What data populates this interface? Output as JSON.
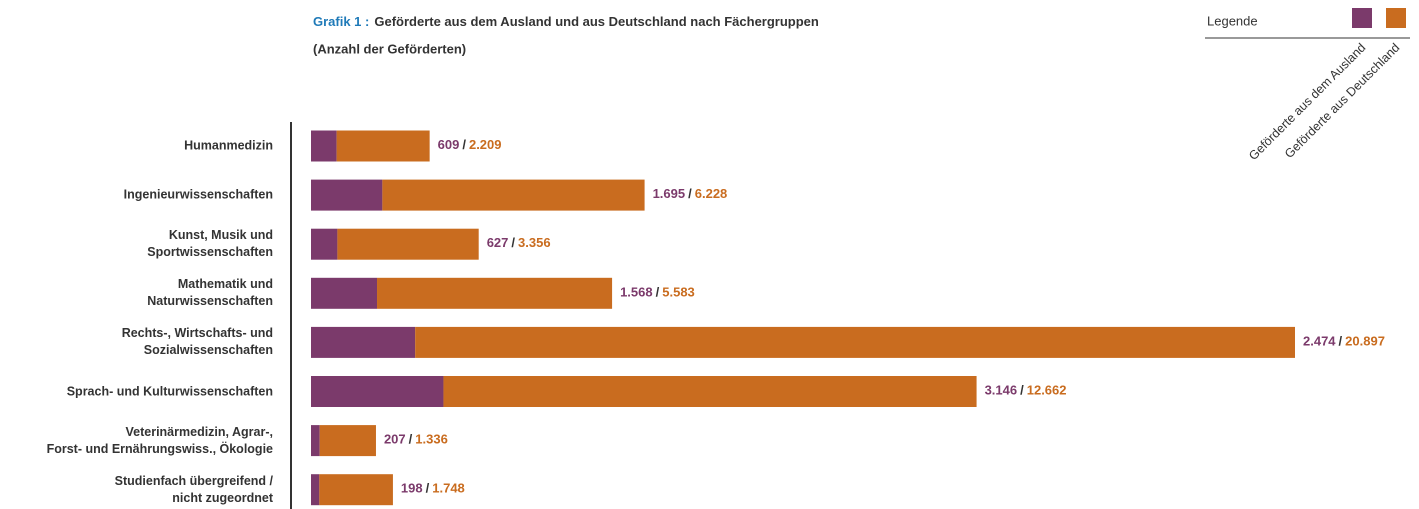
{
  "chart_data": {
    "type": "stacked_barh",
    "title_prefix": "Grafik 1 :",
    "title": "Geförderte aus dem Ausland und aus Deutschland nach Fächergruppen",
    "subtitle": "(Anzahl der Geförderten)",
    "legend_title": "Legende",
    "legend": "top-right",
    "value_label_separator": "/",
    "categories": [
      "Humanmedizin",
      "Ingenieurwissenschaften",
      "Kunst, Musik und\nSportwissenschaften",
      "Mathematik und\nNaturwissenschaften",
      "Rechts-, Wirtschafts- und\nSozialwissenschaften",
      "Sprach- und Kulturwissenschaften",
      "Veterinärmedizin, Agrar-,\nForst- und Ernährungswiss., Ökologie",
      "Studienfach übergreifend /\nnicht zugeordnet"
    ],
    "series": [
      {
        "name": "Geförderte aus dem Ausland",
        "color": "#7b3a6b",
        "values": [
          609,
          1695,
          627,
          1568,
          2474,
          3146,
          207,
          198
        ],
        "value_labels": [
          "609",
          "1.695",
          "627",
          "1.568",
          "2.474",
          "3.146",
          "207",
          "198"
        ]
      },
      {
        "name": "Geförderte aus Deutschland",
        "color": "#c96c1f",
        "values": [
          2209,
          6228,
          3356,
          5583,
          20897,
          12662,
          1336,
          1748
        ],
        "value_labels": [
          "2.209",
          "6.228",
          "3.356",
          "5.583",
          "20.897",
          "12.662",
          "1.336",
          "1.748"
        ]
      }
    ]
  }
}
